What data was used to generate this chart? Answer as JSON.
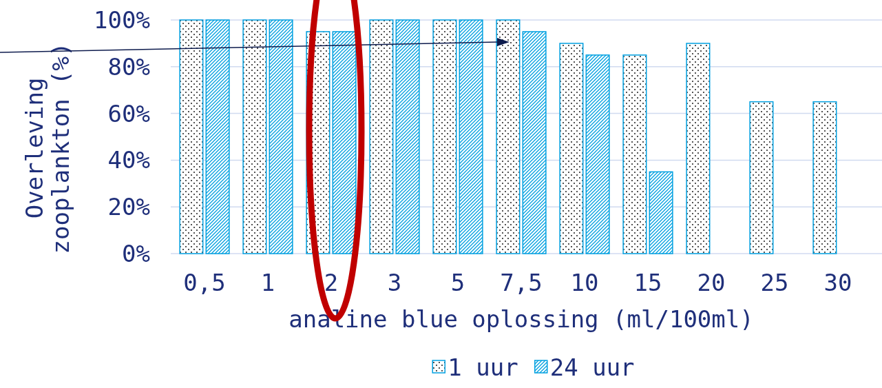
{
  "chart_data": {
    "type": "bar",
    "xlabel": "analine blue oplossing (ml/100ml)",
    "ylabel": "Overleving zooplankton (%)",
    "categories": [
      "0,5",
      "1",
      "2",
      "3",
      "5",
      "7,5",
      "10",
      "15",
      "20",
      "25",
      "30"
    ],
    "series": [
      {
        "name": "1 uur",
        "color": "#00a0e0",
        "values": [
          100,
          100,
          95,
          100,
          100,
          100,
          90,
          85,
          90,
          65,
          65
        ]
      },
      {
        "name": "24 uur",
        "color": "#00a0e0",
        "values": [
          100,
          100,
          95,
          100,
          100,
          95,
          85,
          35,
          null,
          null,
          null
        ]
      }
    ],
    "ylim": [
      0,
      100
    ],
    "yticks": [
      {
        "value": 0,
        "label": "0%"
      },
      {
        "value": 20,
        "label": "20%"
      },
      {
        "value": 40,
        "label": "40%"
      },
      {
        "value": 60,
        "label": "60%"
      },
      {
        "value": 80,
        "label": "80%"
      },
      {
        "value": 100,
        "label": "100%"
      }
    ],
    "grid": "y",
    "legend": "bottom"
  }
}
